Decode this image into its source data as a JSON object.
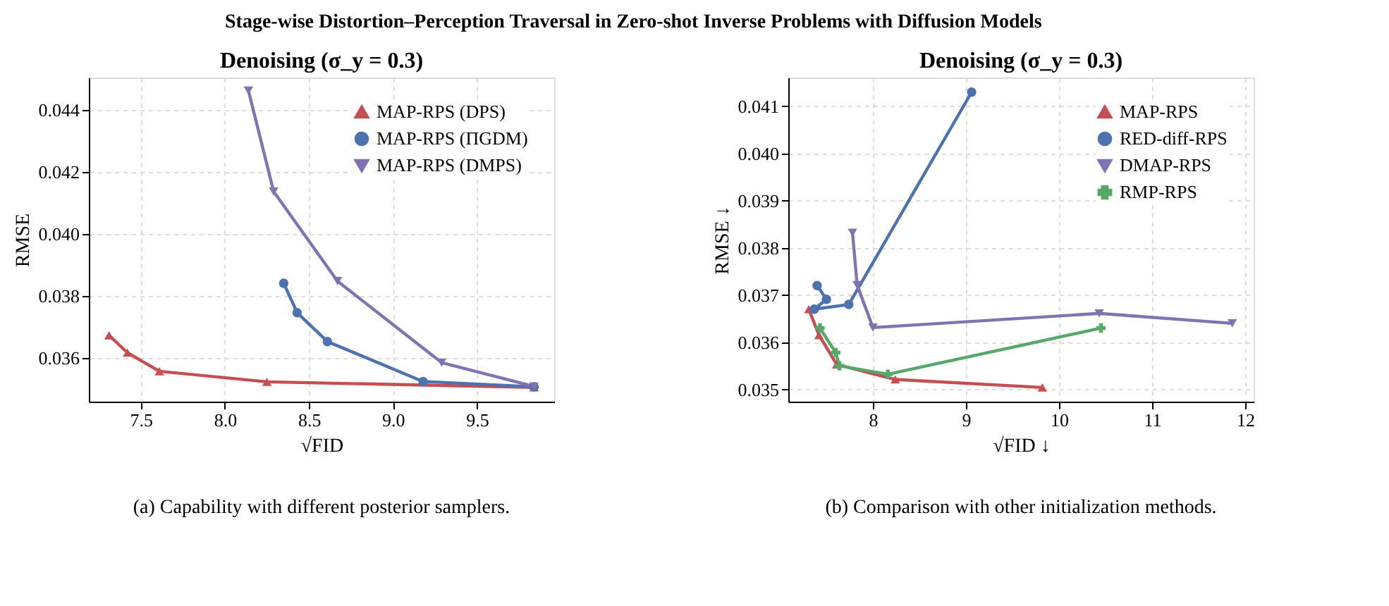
{
  "chart_data": [
    {
      "type": "line",
      "title": "Denoising (σ_y = 0.3)",
      "xlabel": "√FID",
      "ylabel": "RMSE",
      "annotations": [
        "Stage-wise Distortion–Perception Traversal in Zero-shot Inverse Problems with Diffusion Models",
        "(a) Capability with different posterior samplers."
      ],
      "xlim": [
        7.19,
        9.96
      ],
      "ylim": [
        0.03459,
        0.04505
      ],
      "xticks": [
        7.5,
        {
          "value": 8.0,
          "label": "8.0"
        },
        8.5,
        {
          "value": 9.0,
          "label": "9.0"
        },
        9.5
      ],
      "yticks": [
        0.036,
        0.038,
        {
          "value": 0.04,
          "label": "0.040"
        },
        0.042,
        0.044
      ],
      "grid": true,
      "legend": "top right",
      "line_style": "solid",
      "series": [
        {
          "name": "MAP-RPS (DPS)",
          "color": "#c44e52",
          "marker": "triangle",
          "x": [
            7.31,
            7.42,
            7.61,
            8.25,
            9.84
          ],
          "values": [
            0.03673,
            0.03617,
            0.03557,
            0.03523,
            0.03505
          ]
        },
        {
          "name": "MAP-RPS (ΠGDM)",
          "color": "#4c72b0",
          "marker": "circle",
          "x": [
            8.35,
            8.43,
            8.61,
            9.18,
            9.84
          ],
          "values": [
            0.03841,
            0.03746,
            0.03653,
            0.03524,
            0.03507
          ]
        },
        {
          "name": "MAP-RPS (DMPS)",
          "color": "#8172b2",
          "marker": "triangle-down",
          "x": [
            8.14,
            8.29,
            8.67,
            9.29,
            9.84
          ],
          "values": [
            0.04463,
            0.04137,
            0.03848,
            0.03585,
            0.03508
          ]
        }
      ]
    },
    {
      "type": "line",
      "title": "Denoising (σ_y = 0.3)",
      "xlabel": "√FID ↓",
      "ylabel": "RMSE ↓",
      "annotations": [
        "(b) Comparison with other initialization methods."
      ],
      "xlim": [
        7.09,
        12.09
      ],
      "ylim": [
        0.03474,
        0.04161
      ],
      "xticks": [
        8,
        9,
        10,
        11,
        12
      ],
      "yticks": [
        0.035,
        0.036,
        0.037,
        0.038,
        0.039,
        {
          "value": 0.04,
          "label": "0.040"
        },
        0.041
      ],
      "grid": true,
      "legend": "top right",
      "line_style": "solid",
      "series": [
        {
          "name": "MAP-RPS",
          "color": "#c44e52",
          "marker": "triangle",
          "x": [
            7.31,
            7.42,
            7.61,
            8.24,
            9.82
          ],
          "values": [
            0.0367,
            0.03615,
            0.03553,
            0.03521,
            0.03504
          ]
        },
        {
          "name": "RED-diff-RPS",
          "color": "#4c72b0",
          "marker": "circle",
          "x": [
            7.4,
            7.5,
            7.37,
            7.74,
            9.06
          ],
          "values": [
            0.0372,
            0.03691,
            0.0367,
            0.0368,
            0.0413
          ]
        },
        {
          "name": "DMAP-RPS",
          "color": "#8172b2",
          "marker": "triangle-down",
          "x": [
            7.78,
            7.83,
            8.0,
            10.43,
            11.86
          ],
          "values": [
            0.03832,
            0.03721,
            0.03631,
            0.03661,
            0.0364
          ]
        },
        {
          "name": "RMP-RPS",
          "color": "#55a868",
          "marker": "cross",
          "x": [
            7.43,
            7.6,
            7.64,
            8.16,
            10.45
          ],
          "values": [
            0.0363,
            0.03578,
            0.0355,
            0.03532,
            0.0363
          ]
        }
      ]
    }
  ]
}
